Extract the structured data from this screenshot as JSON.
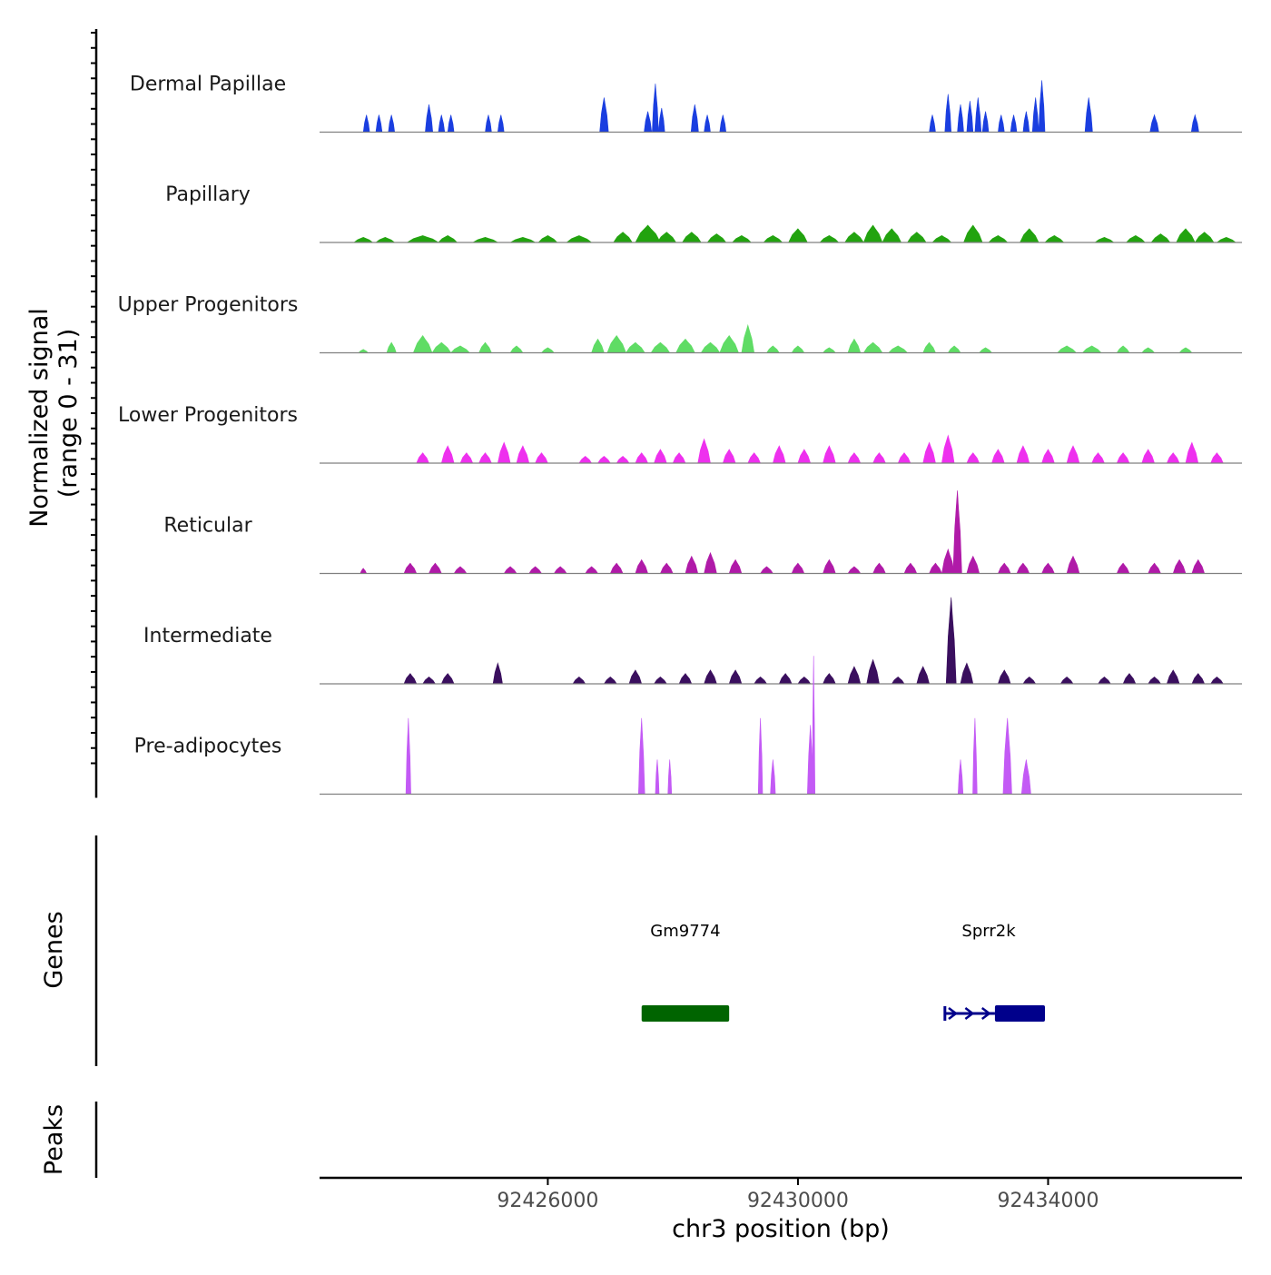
{
  "chart_data": {
    "type": "area",
    "subtype": "genome-coverage-track",
    "chromosome": "chr3",
    "xlabel": "chr3 position (bp)",
    "xlim": [
      92422350,
      92437100
    ],
    "xticks": [
      {
        "value": 92426000,
        "label": "92426000"
      },
      {
        "value": 92430000,
        "label": "92430000"
      },
      {
        "value": 92434000,
        "label": "92434000"
      }
    ],
    "ylabel_line1": "Normalized signal",
    "ylabel_line2": "(range 0 - 31)",
    "ylim": [
      0,
      31
    ],
    "series": [
      {
        "name": "Dermal Papillae",
        "color": "#1a3ee0",
        "peaks": [
          [
            92423100,
            100,
            5
          ],
          [
            92423300,
            100,
            5
          ],
          [
            92423500,
            100,
            5
          ],
          [
            92424100,
            120,
            8
          ],
          [
            92424300,
            100,
            5
          ],
          [
            92424450,
            100,
            5
          ],
          [
            92425050,
            100,
            5
          ],
          [
            92425250,
            100,
            5
          ],
          [
            92426900,
            140,
            10
          ],
          [
            92427600,
            120,
            6
          ],
          [
            92427720,
            100,
            14
          ],
          [
            92427820,
            100,
            7
          ],
          [
            92428350,
            120,
            8
          ],
          [
            92428550,
            100,
            5
          ],
          [
            92428800,
            100,
            5
          ],
          [
            92432150,
            100,
            5
          ],
          [
            92432400,
            100,
            11
          ],
          [
            92432600,
            100,
            8
          ],
          [
            92432750,
            100,
            9
          ],
          [
            92432880,
            100,
            10
          ],
          [
            92433000,
            100,
            6
          ],
          [
            92433250,
            100,
            5
          ],
          [
            92433450,
            100,
            5
          ],
          [
            92433650,
            100,
            6
          ],
          [
            92433800,
            100,
            10
          ],
          [
            92433900,
            100,
            15
          ],
          [
            92434650,
            120,
            10
          ],
          [
            92435700,
            140,
            5
          ],
          [
            92436350,
            120,
            5
          ]
        ]
      },
      {
        "name": "Papillary",
        "color": "#22a30f",
        "peaks": [
          [
            92423050,
            300,
            1.5
          ],
          [
            92423400,
            300,
            1.5
          ],
          [
            92424000,
            500,
            2
          ],
          [
            92424400,
            300,
            2
          ],
          [
            92425000,
            400,
            1.5
          ],
          [
            92425600,
            400,
            1.5
          ],
          [
            92426000,
            300,
            2
          ],
          [
            92426500,
            400,
            2
          ],
          [
            92427200,
            300,
            3
          ],
          [
            92427600,
            400,
            5
          ],
          [
            92427900,
            300,
            3
          ],
          [
            92428300,
            300,
            3
          ],
          [
            92428700,
            300,
            2.5
          ],
          [
            92429100,
            300,
            2
          ],
          [
            92429600,
            300,
            2
          ],
          [
            92430000,
            300,
            4
          ],
          [
            92430500,
            300,
            2
          ],
          [
            92430900,
            300,
            3
          ],
          [
            92431200,
            300,
            5
          ],
          [
            92431500,
            300,
            4
          ],
          [
            92431900,
            300,
            3
          ],
          [
            92432300,
            300,
            2
          ],
          [
            92432800,
            300,
            5
          ],
          [
            92433200,
            300,
            2
          ],
          [
            92433700,
            300,
            4
          ],
          [
            92434100,
            300,
            2
          ],
          [
            92434900,
            300,
            1.5
          ],
          [
            92435400,
            300,
            2
          ],
          [
            92435800,
            300,
            2.5
          ],
          [
            92436200,
            300,
            4
          ],
          [
            92436500,
            300,
            3
          ],
          [
            92436850,
            300,
            1.5
          ]
        ]
      },
      {
        "name": "Upper Progenitors",
        "color": "#5fdc65",
        "peaks": [
          [
            92423050,
            150,
            1
          ],
          [
            92423500,
            150,
            3
          ],
          [
            92424000,
            300,
            5
          ],
          [
            92424300,
            300,
            3
          ],
          [
            92424600,
            300,
            2
          ],
          [
            92425000,
            200,
            3
          ],
          [
            92425500,
            200,
            2
          ],
          [
            92426000,
            200,
            1.5
          ],
          [
            92426800,
            200,
            4
          ],
          [
            92427100,
            300,
            5
          ],
          [
            92427400,
            300,
            3
          ],
          [
            92427800,
            300,
            3
          ],
          [
            92428200,
            300,
            4
          ],
          [
            92428600,
            300,
            3
          ],
          [
            92428900,
            300,
            5
          ],
          [
            92429200,
            200,
            8
          ],
          [
            92429600,
            200,
            2
          ],
          [
            92430000,
            200,
            2
          ],
          [
            92430500,
            200,
            1.5
          ],
          [
            92430900,
            200,
            4
          ],
          [
            92431200,
            300,
            3
          ],
          [
            92431600,
            300,
            2
          ],
          [
            92432100,
            200,
            3
          ],
          [
            92432500,
            200,
            2
          ],
          [
            92433000,
            200,
            1.5
          ],
          [
            92434300,
            300,
            2
          ],
          [
            92434700,
            300,
            2
          ],
          [
            92435200,
            200,
            2
          ],
          [
            92435600,
            200,
            1.5
          ],
          [
            92436200,
            200,
            1.5
          ]
        ]
      },
      {
        "name": "Lower Progenitors",
        "color": "#ee30ee",
        "peaks": [
          [
            92424000,
            200,
            3
          ],
          [
            92424400,
            200,
            5
          ],
          [
            92424700,
            200,
            3
          ],
          [
            92425000,
            200,
            3
          ],
          [
            92425300,
            200,
            6
          ],
          [
            92425600,
            200,
            5
          ],
          [
            92425900,
            200,
            3
          ],
          [
            92426600,
            200,
            2
          ],
          [
            92426900,
            200,
            2
          ],
          [
            92427200,
            200,
            2
          ],
          [
            92427500,
            200,
            3
          ],
          [
            92427800,
            200,
            4
          ],
          [
            92428100,
            200,
            3
          ],
          [
            92428500,
            200,
            7
          ],
          [
            92428900,
            200,
            4
          ],
          [
            92429300,
            200,
            3
          ],
          [
            92429700,
            200,
            5
          ],
          [
            92430100,
            200,
            4
          ],
          [
            92430500,
            200,
            5
          ],
          [
            92430900,
            200,
            3
          ],
          [
            92431300,
            200,
            3
          ],
          [
            92431700,
            200,
            3
          ],
          [
            92432100,
            200,
            6
          ],
          [
            92432400,
            200,
            8
          ],
          [
            92432800,
            200,
            3
          ],
          [
            92433200,
            200,
            4
          ],
          [
            92433600,
            200,
            5
          ],
          [
            92434000,
            200,
            4
          ],
          [
            92434400,
            200,
            5
          ],
          [
            92434800,
            200,
            3
          ],
          [
            92435200,
            200,
            3
          ],
          [
            92435600,
            200,
            4
          ],
          [
            92436000,
            200,
            3
          ],
          [
            92436300,
            200,
            6
          ],
          [
            92436700,
            200,
            3
          ]
        ]
      },
      {
        "name": "Reticular",
        "color": "#b01aa8",
        "peaks": [
          [
            92423050,
            100,
            1.5
          ],
          [
            92423800,
            200,
            3
          ],
          [
            92424200,
            200,
            3
          ],
          [
            92424600,
            200,
            2
          ],
          [
            92425400,
            200,
            2
          ],
          [
            92425800,
            200,
            2
          ],
          [
            92426200,
            200,
            2
          ],
          [
            92426700,
            200,
            2
          ],
          [
            92427100,
            200,
            3
          ],
          [
            92427500,
            200,
            4
          ],
          [
            92427900,
            200,
            3
          ],
          [
            92428300,
            200,
            5
          ],
          [
            92428600,
            200,
            6
          ],
          [
            92429000,
            200,
            4
          ],
          [
            92429500,
            200,
            2
          ],
          [
            92430000,
            200,
            3
          ],
          [
            92430500,
            200,
            4
          ],
          [
            92430900,
            200,
            2
          ],
          [
            92431300,
            200,
            3
          ],
          [
            92431800,
            200,
            3
          ],
          [
            92432200,
            200,
            3
          ],
          [
            92432400,
            200,
            7
          ],
          [
            92432550,
            140,
            24
          ],
          [
            92432800,
            200,
            5
          ],
          [
            92433300,
            200,
            3
          ],
          [
            92433600,
            200,
            3
          ],
          [
            92434000,
            200,
            3
          ],
          [
            92434400,
            200,
            5
          ],
          [
            92435200,
            200,
            3
          ],
          [
            92435700,
            200,
            3
          ],
          [
            92436100,
            200,
            4
          ],
          [
            92436400,
            200,
            4
          ]
        ]
      },
      {
        "name": "Intermediate",
        "color": "#3a0f5e",
        "peaks": [
          [
            92423800,
            200,
            3
          ],
          [
            92424100,
            200,
            2
          ],
          [
            92424400,
            200,
            3
          ],
          [
            92425200,
            150,
            6
          ],
          [
            92426500,
            200,
            2
          ],
          [
            92427000,
            200,
            2
          ],
          [
            92427400,
            200,
            4
          ],
          [
            92427800,
            200,
            2
          ],
          [
            92428200,
            200,
            3
          ],
          [
            92428600,
            200,
            4
          ],
          [
            92429000,
            200,
            4
          ],
          [
            92429400,
            200,
            2
          ],
          [
            92429800,
            200,
            3
          ],
          [
            92430100,
            200,
            2
          ],
          [
            92430500,
            200,
            3
          ],
          [
            92430900,
            200,
            5
          ],
          [
            92431200,
            200,
            7
          ],
          [
            92431600,
            200,
            2
          ],
          [
            92432000,
            200,
            5
          ],
          [
            92432450,
            160,
            25
          ],
          [
            92432700,
            200,
            6
          ],
          [
            92433300,
            200,
            4
          ],
          [
            92433700,
            200,
            2
          ],
          [
            92434300,
            200,
            2
          ],
          [
            92434900,
            200,
            2
          ],
          [
            92435300,
            200,
            3
          ],
          [
            92435700,
            200,
            2
          ],
          [
            92436000,
            200,
            4
          ],
          [
            92436400,
            200,
            3
          ],
          [
            92436700,
            200,
            2
          ]
        ]
      },
      {
        "name": "Pre-adipocytes",
        "color": "#c35af5",
        "peaks": [
          [
            92423770,
            80,
            22
          ],
          [
            92427500,
            100,
            22
          ],
          [
            92427750,
            60,
            10
          ],
          [
            92427950,
            60,
            10
          ],
          [
            92429400,
            70,
            22
          ],
          [
            92429600,
            80,
            10
          ],
          [
            92430200,
            100,
            20
          ],
          [
            92430250,
            25,
            40
          ],
          [
            92432600,
            80,
            10
          ],
          [
            92432830,
            70,
            22
          ],
          [
            92433350,
            140,
            22
          ],
          [
            92433650,
            150,
            10
          ]
        ]
      }
    ],
    "genes": [
      {
        "name": "Gm9774",
        "start": 92427500,
        "end": 92428900,
        "strand": "+",
        "color": "#006400",
        "label_x": 92428200
      },
      {
        "name": "Sprr2k",
        "start": 92432350,
        "end": 92433950,
        "cds_start": 92433150,
        "strand": "+",
        "color": "#00008b",
        "label_x": 92433050
      }
    ],
    "genes_label": "Genes",
    "peaks_label": "Peaks",
    "peaks_track": []
  }
}
